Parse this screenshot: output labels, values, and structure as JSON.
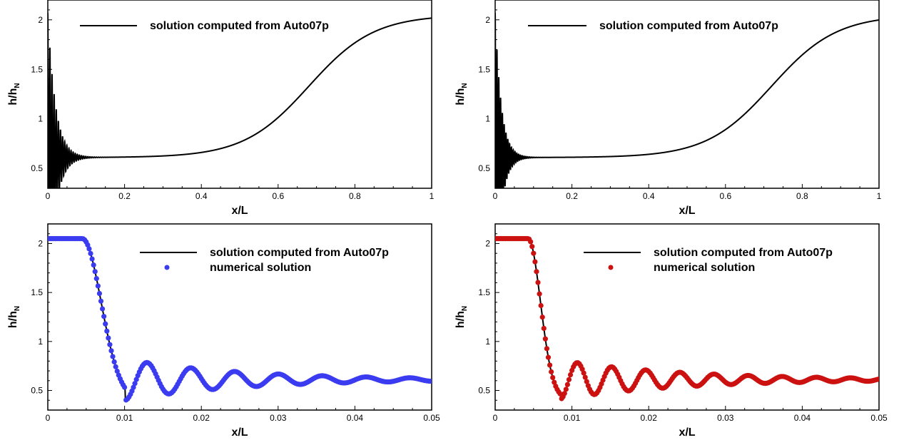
{
  "chart_data": [
    {
      "type": "line",
      "xlabel": "x/L",
      "ylabel": "h/h",
      "ylabel_sub": "N",
      "xlim": [
        0,
        1
      ],
      "ylim": [
        0.3,
        2.2
      ],
      "xticks": [
        "0",
        "0.2",
        "0.4",
        "0.6",
        "0.8",
        "1"
      ],
      "xtick_values": [
        0,
        0.2,
        0.4,
        0.6,
        0.8,
        1
      ],
      "yticks": [
        "0.5",
        "1",
        "1.5",
        "2"
      ],
      "ytick_values": [
        0.5,
        1,
        1.5,
        2
      ],
      "grid": false,
      "legend_position": "top",
      "series": [
        {
          "name": "solution computed from Auto07p",
          "color": "#000000",
          "style": "line",
          "model": {
            "kind": "full",
            "plateau": 0.61,
            "amp": 1.46,
            "decay": 0.02,
            "period": 0.0055,
            "end": 2.05,
            "mid": 0.68,
            "width": 0.085
          }
        }
      ]
    },
    {
      "type": "line",
      "xlabel": "x/L",
      "ylabel": "h/h",
      "ylabel_sub": "N",
      "xlim": [
        0,
        1
      ],
      "ylim": [
        0.3,
        2.2
      ],
      "xticks": [
        "0",
        "0.2",
        "0.4",
        "0.6",
        "0.8",
        "1"
      ],
      "xtick_values": [
        0,
        0.2,
        0.4,
        0.6,
        0.8,
        1
      ],
      "yticks": [
        "0.5",
        "1",
        "1.5",
        "2"
      ],
      "ytick_values": [
        0.5,
        1,
        1.5,
        2
      ],
      "grid": false,
      "legend_position": "top",
      "series": [
        {
          "name": "solution computed from Auto07p",
          "color": "#000000",
          "style": "line",
          "model": {
            "kind": "full",
            "plateau": 0.61,
            "amp": 1.46,
            "decay": 0.016,
            "period": 0.0047,
            "end": 2.05,
            "mid": 0.72,
            "width": 0.085
          }
        }
      ]
    },
    {
      "type": "line",
      "xlabel": "x/L",
      "ylabel": "h/h",
      "ylabel_sub": "N",
      "xlim": [
        0,
        0.05
      ],
      "ylim": [
        0.3,
        2.2
      ],
      "xticks": [
        "0",
        "0.01",
        "0.02",
        "0.03",
        "0.04",
        "0.05"
      ],
      "xtick_values": [
        0,
        0.01,
        0.02,
        0.03,
        0.04,
        0.05
      ],
      "yticks": [
        "0.5",
        "1",
        "1.5",
        "2"
      ],
      "ytick_values": [
        0.5,
        1,
        1.5,
        2
      ],
      "grid": false,
      "legend_position": "top-right",
      "series": [
        {
          "name": "solution computed from Auto07p",
          "color": "#000000",
          "style": "line",
          "model": {
            "kind": "zoom",
            "plateau": 0.61,
            "amp": 1.44,
            "x0": 0.0045,
            "first_min_x": 0.0101,
            "min_value": 0.4,
            "sigma": 0.00245,
            "period": 0.00571,
            "tau": 0.0155
          }
        },
        {
          "name": "numerical solution",
          "color": "#3b3bf0",
          "style": "points",
          "model": {
            "kind": "zoom",
            "plateau": 0.61,
            "amp": 1.44,
            "x0": 0.0045,
            "first_min_x": 0.0101,
            "min_value": 0.4,
            "sigma": 0.00245,
            "period": 0.00571,
            "tau": 0.0155
          }
        }
      ]
    },
    {
      "type": "line",
      "xlabel": "x/L",
      "ylabel": "h/h",
      "ylabel_sub": "N",
      "xlim": [
        0,
        0.05
      ],
      "ylim": [
        0.3,
        2.2
      ],
      "xticks": [
        "0",
        "0.01",
        "0.02",
        "0.03",
        "0.04",
        "0.05"
      ],
      "xtick_values": [
        0,
        0.01,
        0.02,
        0.03,
        0.04,
        0.05
      ],
      "yticks": [
        "0.5",
        "1",
        "1.5",
        "2"
      ],
      "ytick_values": [
        0.5,
        1,
        1.5,
        2
      ],
      "grid": false,
      "legend_position": "top-right",
      "series": [
        {
          "name": "solution computed from Auto07p",
          "color": "#000000",
          "style": "line",
          "model": {
            "kind": "zoom",
            "plateau": 0.61,
            "amp": 1.44,
            "x0": 0.0043,
            "first_min_x": 0.0085,
            "min_value": 0.41,
            "sigma": 0.0016,
            "period": 0.00445,
            "tau": 0.016
          }
        },
        {
          "name": "numerical solution",
          "color": "#cc1111",
          "style": "points",
          "model": {
            "kind": "zoom",
            "plateau": 0.61,
            "amp": 1.44,
            "x0": 0.0043,
            "first_min_x": 0.0085,
            "min_value": 0.41,
            "sigma": 0.0016,
            "period": 0.00445,
            "tau": 0.016
          }
        }
      ]
    }
  ]
}
